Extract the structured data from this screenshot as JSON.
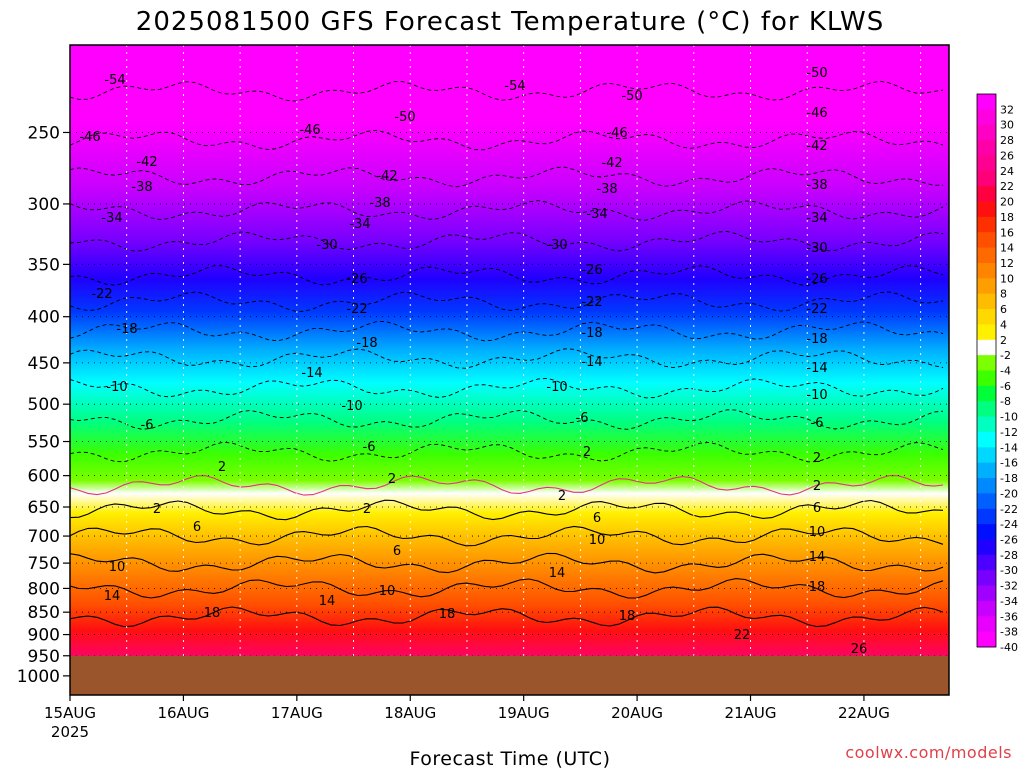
{
  "chart_data": {
    "type": "heatmap",
    "title": "2025081500 GFS Forecast Temperature (°C) for KLWS",
    "xlabel": "Forecast Time (UTC)",
    "ylabel": "",
    "x_ticks": [
      "15AUG",
      "16AUG",
      "17AUG",
      "18AUG",
      "19AUG",
      "20AUG",
      "21AUG",
      "22AUG"
    ],
    "x_ticks_sub": [
      "2025",
      "",
      "",
      "",
      "",
      "",
      "",
      ""
    ],
    "xlim": [
      "2025-08-15T00:00",
      "2025-08-22T18:00"
    ],
    "y_ticks": [
      250,
      300,
      350,
      400,
      450,
      500,
      550,
      600,
      650,
      700,
      750,
      800,
      850,
      900,
      950,
      1000
    ],
    "y_scale": "log",
    "y_inverted": true,
    "ylim": [
      1050,
      200
    ],
    "ground_level_hPa": 950,
    "ground_color": "#9b552c",
    "grid": true,
    "colorbar": {
      "position": "right",
      "levels": [
        32,
        30,
        28,
        26,
        24,
        22,
        20,
        18,
        16,
        14,
        12,
        10,
        8,
        6,
        4,
        2,
        -2,
        -4,
        -6,
        -8,
        -10,
        -12,
        -14,
        -16,
        -18,
        -20,
        -22,
        -24,
        -26,
        -28,
        -30,
        -32,
        -34,
        -36,
        -38,
        -40
      ],
      "colors": [
        "#ff00ff",
        "#ff00e0",
        "#ff00c4",
        "#ff00a8",
        "#ff0090",
        "#ff0078",
        "#ff0040",
        "#ff1010",
        "#ff3000",
        "#ff5000",
        "#ff6a00",
        "#ff8400",
        "#ff9e00",
        "#ffbc00",
        "#ffd800",
        "#fff000",
        "#ffffff",
        "#7cff00",
        "#3cff00",
        "#00ff38",
        "#00ff80",
        "#00ffc0",
        "#00ffff",
        "#00d8ff",
        "#00b0ff",
        "#0088ff",
        "#0060ff",
        "#0038ff",
        "#0010ff",
        "#2000ff",
        "#4c00ff",
        "#7800ff",
        "#a000ff",
        "#c800ff",
        "#e800ff",
        "#ff00ff"
      ]
    },
    "temperature_profile_850_hPa_by_day": [
      {
        "x": "2025-08-15T00:00",
        "y": 12
      },
      {
        "x": "2025-08-16T00:00",
        "y": 16
      },
      {
        "x": "2025-08-17T00:00",
        "y": 14
      },
      {
        "x": "2025-08-18T00:00",
        "y": 17
      },
      {
        "x": "2025-08-19T00:00",
        "y": 22
      },
      {
        "x": "2025-08-20T00:00",
        "y": 20
      },
      {
        "x": "2025-08-21T00:00",
        "y": 22
      },
      {
        "x": "2025-08-22T00:00",
        "y": 22
      }
    ],
    "contour_labels": [
      "-54",
      "-50",
      "-46",
      "-42",
      "-38",
      "-34",
      "-30",
      "-26",
      "-22",
      "-18",
      "-14",
      "-10",
      "-6",
      "2",
      "6",
      "10",
      "14",
      "18",
      "22",
      "26"
    ]
  },
  "watermark": "coolwx.com/models"
}
